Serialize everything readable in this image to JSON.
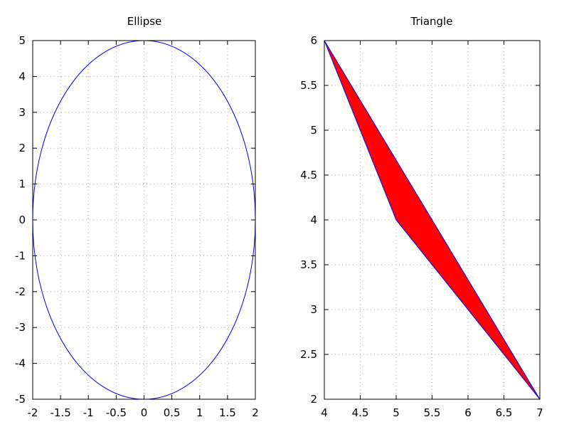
{
  "chart_data": [
    {
      "type": "line",
      "title": "Ellipse",
      "xlabel": "",
      "ylabel": "",
      "xlim": [
        -2,
        2
      ],
      "ylim": [
        -5,
        5
      ],
      "xticks": [
        -2,
        -1.5,
        -1,
        -0.5,
        0,
        0.5,
        1,
        1.5,
        2
      ],
      "yticks": [
        -5,
        -4,
        -3,
        -2,
        -1,
        0,
        1,
        2,
        3,
        4,
        5
      ],
      "grid": true,
      "series": [
        {
          "shape": "ellipse",
          "center": [
            0,
            0
          ],
          "semi_axes": [
            2,
            5
          ],
          "color": "#0000ff"
        }
      ]
    },
    {
      "type": "area",
      "title": "Triangle",
      "xlabel": "",
      "ylabel": "",
      "xlim": [
        4,
        7
      ],
      "ylim": [
        2,
        6
      ],
      "xticks": [
        4,
        4.5,
        5,
        5.5,
        6,
        6.5,
        7
      ],
      "yticks": [
        2,
        2.5,
        3,
        3.5,
        4,
        4.5,
        5,
        5.5,
        6
      ],
      "grid": true,
      "series": [
        {
          "points": [
            [
              4,
              6
            ],
            [
              5,
              4
            ],
            [
              7,
              2
            ],
            [
              4,
              6
            ]
          ],
          "fill": "#ff0000",
          "color": "#0000ff"
        }
      ]
    }
  ]
}
